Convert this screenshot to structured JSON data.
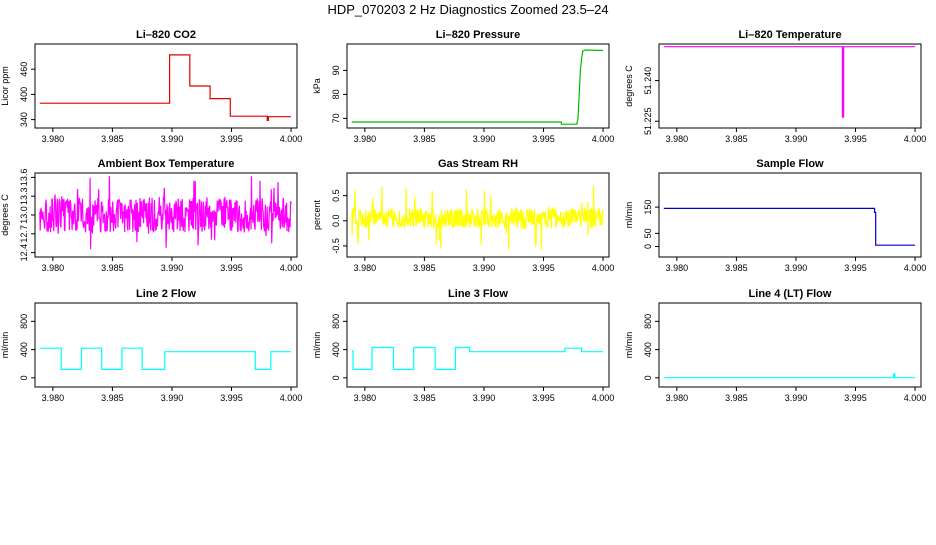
{
  "figure": {
    "title": "HDP_070203  2 Hz Diagnostics Zoomed 23.5–24"
  },
  "chart_data": [
    {
      "type": "line",
      "title": "Li–820 CO2",
      "xlabel": "",
      "ylabel": "Licor ppm",
      "color": "#e00000",
      "xlim": [
        3.9785,
        4.0005
      ],
      "ylim": [
        320,
        520
      ],
      "x_ticks": [
        "3.980",
        "3.985",
        "3.990",
        "3.995",
        "4.000"
      ],
      "y_ticks": [
        "340",
        "400",
        "460"
      ],
      "x": [
        3.9789,
        3.9898,
        3.9898,
        3.9915,
        3.9915,
        3.9932,
        3.9932,
        3.9949,
        3.9949,
        3.998,
        3.998,
        3.9981,
        3.9981,
        4.0
      ],
      "y": [
        379,
        379,
        494,
        494,
        420,
        420,
        390,
        390,
        348,
        348,
        338,
        338,
        347,
        347
      ]
    },
    {
      "type": "line",
      "title": "Li–820 Pressure",
      "xlabel": "",
      "ylabel": "kPa",
      "color": "#00bb00",
      "xlim": [
        3.9785,
        4.0005
      ],
      "ylim": [
        66,
        101
      ],
      "x_ticks": [
        "3.980",
        "3.985",
        "3.990",
        "3.995",
        "4.000"
      ],
      "y_ticks": [
        "70",
        "80",
        "90"
      ],
      "x": [
        3.9789,
        3.9965,
        3.9965,
        3.9978,
        3.9979,
        3.998,
        3.9981,
        3.9982,
        3.9983,
        3.9985,
        4.0
      ],
      "y": [
        68.5,
        68.5,
        67.6,
        67.6,
        70,
        80,
        90,
        95,
        98,
        98.5,
        98.3
      ]
    },
    {
      "type": "line",
      "title": "Li–820 Temperature",
      "xlabel": "",
      "ylabel": "degrees C",
      "color": "#ff00ff",
      "xlim": [
        3.9785,
        4.0005
      ],
      "ylim": [
        51.2225,
        51.2535
      ],
      "x_ticks": [
        "3.980",
        "3.985",
        "3.990",
        "3.995",
        "4.000"
      ],
      "y_ticks": [
        "51.225",
        "51.240"
      ],
      "x_tick_values": [
        3.98,
        3.985,
        3.99,
        3.995,
        4.0
      ],
      "y_tick_values": [
        51.225,
        51.24
      ],
      "x": [
        3.9789,
        3.9939,
        3.9939,
        3.994,
        3.994,
        4.0
      ],
      "y": [
        51.2525,
        51.2525,
        51.2265,
        51.2265,
        51.2525,
        51.2525
      ]
    },
    {
      "type": "line",
      "title": "Ambient Box Temperature",
      "xlabel": "",
      "ylabel": "degrees C",
      "color": "#ff00ff",
      "xlim": [
        3.9785,
        4.0005
      ],
      "ylim": [
        12.33,
        13.67
      ],
      "x_ticks": [
        "3.980",
        "3.985",
        "3.990",
        "3.995",
        "4.000"
      ],
      "y_ticks": [
        "12.4",
        "12.7",
        "13.0",
        "13.3",
        "13.6"
      ],
      "noise": {
        "base": 13.0,
        "amp": 0.28,
        "spike": 0.62,
        "n": 560
      },
      "x": [
        3.9789,
        4.0
      ],
      "y": [
        13.0,
        13.0
      ]
    },
    {
      "type": "line",
      "title": "Gas Stream RH",
      "xlabel": "",
      "ylabel": "percent",
      "color": "#ffff00",
      "xlim": [
        3.9785,
        4.0005
      ],
      "ylim": [
        -0.72,
        0.95
      ],
      "x_ticks": [
        "3.980",
        "3.985",
        "3.990",
        "3.995",
        "4.000"
      ],
      "y_ticks": [
        "-0.5",
        "0.0",
        "0.5"
      ],
      "noise": {
        "base": 0.05,
        "amp": 0.2,
        "spike": 0.65,
        "n": 560
      },
      "x": [
        3.9789,
        4.0
      ],
      "y": [
        0.05,
        0.05
      ]
    },
    {
      "type": "line",
      "title": "Sample Flow",
      "xlabel": "",
      "ylabel": "ml/min",
      "color": "#0000cc",
      "xlim": [
        3.9785,
        4.0005
      ],
      "ylim": [
        -40,
        280
      ],
      "x_ticks": [
        "3.980",
        "3.985",
        "3.990",
        "3.995",
        "4.000"
      ],
      "y_ticks": [
        "0",
        "50",
        "150"
      ],
      "x": [
        3.9789,
        3.9966,
        3.9966,
        3.9967,
        3.9967,
        4.0
      ],
      "y": [
        145,
        145,
        130,
        130,
        5,
        5
      ]
    },
    {
      "type": "line",
      "title": "Line 2 Flow",
      "xlabel": "",
      "ylabel": "ml/min",
      "color": "#00ffff",
      "xlim": [
        3.9785,
        4.0005
      ],
      "ylim": [
        -130,
        1060
      ],
      "x_ticks": [
        "3.980",
        "3.985",
        "3.990",
        "3.995",
        "4.000"
      ],
      "y_ticks": [
        "0",
        "400",
        "800"
      ],
      "x": [
        3.9789,
        3.9807,
        3.9807,
        3.9824,
        3.9824,
        3.9841,
        3.9841,
        3.9858,
        3.9858,
        3.9875,
        3.9875,
        3.9894,
        3.9894,
        3.997,
        3.997,
        3.9983,
        3.9983,
        4.0
      ],
      "y": [
        420,
        420,
        120,
        120,
        420,
        420,
        120,
        120,
        420,
        420,
        120,
        120,
        370,
        370,
        120,
        120,
        370,
        370
      ]
    },
    {
      "type": "line",
      "title": "Line 3 Flow",
      "xlabel": "",
      "ylabel": "ml/min",
      "color": "#00ffff",
      "xlim": [
        3.9785,
        4.0005
      ],
      "ylim": [
        -130,
        1060
      ],
      "x_ticks": [
        "3.980",
        "3.985",
        "3.990",
        "3.995",
        "4.000"
      ],
      "y_ticks": [
        "0",
        "400",
        "800"
      ],
      "x": [
        3.9789,
        3.979,
        3.979,
        3.9806,
        3.9806,
        3.9824,
        3.9824,
        3.9841,
        3.9841,
        3.9859,
        3.9859,
        3.9876,
        3.9876,
        3.9888,
        3.9888,
        3.9968,
        3.9968,
        3.9982,
        3.9982,
        4.0
      ],
      "y": [
        380,
        380,
        120,
        120,
        430,
        430,
        120,
        120,
        430,
        430,
        120,
        120,
        430,
        430,
        370,
        370,
        420,
        420,
        370,
        370
      ]
    },
    {
      "type": "line",
      "title": "Line 4 (LT) Flow",
      "xlabel": "",
      "ylabel": "ml/min",
      "color": "#00ffff",
      "xlim": [
        3.9785,
        4.0005
      ],
      "ylim": [
        -130,
        1060
      ],
      "x_ticks": [
        "3.980",
        "3.985",
        "3.990",
        "3.995",
        "4.000"
      ],
      "y_ticks": [
        "0",
        "400",
        "800"
      ],
      "x": [
        3.9789,
        3.9982,
        3.9982,
        3.9983,
        3.9983,
        4.0
      ],
      "y": [
        2,
        2,
        55,
        55,
        2,
        2
      ]
    }
  ]
}
